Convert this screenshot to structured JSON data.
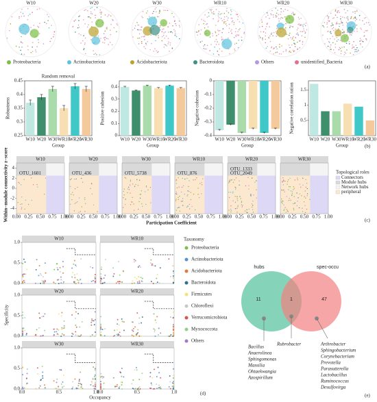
{
  "panel_a": {
    "titles": [
      "W10",
      "W20",
      "W30",
      "WR10",
      "WR20",
      "WR30"
    ],
    "legend": [
      {
        "name": "Proteobacteria",
        "color": "#7cbf45"
      },
      {
        "name": "Actinobacteriota",
        "color": "#5bc3e0"
      },
      {
        "name": "Acidobacteriota",
        "color": "#b9a32c"
      },
      {
        "name": "Bacteroidota",
        "color": "#3e9188"
      },
      {
        "name": "Others",
        "color": "#b597e3"
      },
      {
        "name": "unidentified_Bacteria",
        "color": "#e2728c"
      }
    ],
    "label": "(a)"
  },
  "chart_data": [
    {
      "type": "bar",
      "title": "Random removal",
      "y_label": "Robustness",
      "x_label": "Group",
      "categories": [
        "W10",
        "W20",
        "W30",
        "WR10",
        "WR20",
        "WR30"
      ],
      "values": [
        0.37,
        0.39,
        0.42,
        0.35,
        0.43,
        0.42
      ],
      "errors": [
        0.01,
        0.01,
        0.01,
        0.01,
        0.01,
        0.01
      ],
      "colors": [
        "#bfe8e2",
        "#3f8f6c",
        "#a9dcaa",
        "#f7dfb2",
        "#40c7c7",
        "#f4c99c"
      ],
      "ylim": [
        0.25,
        0.45
      ],
      "yticks": [
        0.25,
        0.3,
        0.35,
        0.4,
        0.45
      ]
    },
    {
      "type": "bar",
      "y_label": "Positive cohesion",
      "x_label": "Group",
      "categories": [
        "W10",
        "W20",
        "W30",
        "WR10",
        "WR20",
        "WR30"
      ],
      "values": [
        0.4,
        0.37,
        0.41,
        0.39,
        0.41,
        0.39
      ],
      "errors": [
        0.005,
        0.005,
        0.005,
        0.005,
        0.005,
        0.005
      ],
      "colors": [
        "#bfe8e2",
        "#3f8f6c",
        "#a9dcaa",
        "#f7dfb2",
        "#40c7c7",
        "#f4c99c"
      ],
      "ylim": [
        0,
        0.45
      ],
      "yticks": [
        0,
        0.1,
        0.2,
        0.3,
        0.4
      ]
    },
    {
      "type": "bar",
      "y_label": "Negative cohesion",
      "x_label": "Group",
      "categories": [
        "W10",
        "W20",
        "W30",
        "WR10",
        "WR20",
        "WR30"
      ],
      "values": [
        -0.36,
        -0.32,
        -0.38,
        -0.35,
        -0.38,
        -0.35
      ],
      "errors": [
        0.005,
        0.005,
        0.005,
        0.005,
        0.005,
        0.005
      ],
      "colors": [
        "#bfe8e2",
        "#3f8f6c",
        "#a9dcaa",
        "#f7dfb2",
        "#40c7c7",
        "#f4c99c"
      ],
      "ylim": [
        -0.4,
        0
      ],
      "yticks": [
        -0.4,
        -0.3,
        -0.2,
        -0.1,
        0
      ]
    },
    {
      "type": "bar",
      "y_label": "Negative correlation ration",
      "x_label": "Group",
      "categories": [
        "W10",
        "W20",
        "W30",
        "WR10",
        "WR20",
        "WR30"
      ],
      "values": [
        1.7,
        0.8,
        0.8,
        1.05,
        0.95,
        0.5
      ],
      "colors": [
        "#bfe8e2",
        "#3f8f6c",
        "#a9dcaa",
        "#f7dfb2",
        "#40c7c7",
        "#f4c99c"
      ],
      "ylim": [
        0,
        1.8
      ],
      "yticks": [
        0.5,
        1,
        1.5
      ]
    }
  ],
  "panel_b_label": "(b)",
  "panel_c": {
    "facets": [
      "W10",
      "W20",
      "W30",
      "WR10",
      "WR20",
      "WR30"
    ],
    "annotations": [
      [
        "OTU_1601"
      ],
      [
        "OTU_436"
      ],
      [
        "OTU_5738"
      ],
      [
        "OTU_876"
      ],
      [
        "OTU_2049",
        "OTU_1333"
      ],
      []
    ],
    "y_label": "Within−module connectivity z−score",
    "x_label": "Participation Coefficient",
    "xlim": [
      0,
      1
    ],
    "ylim": [
      -5,
      5
    ],
    "xticks": [
      {
        "value": 0,
        "label": "0.00"
      },
      {
        "value": 0.25,
        "label": "0.25"
      },
      {
        "value": 0.5,
        "label": "0.50"
      },
      {
        "value": 0.75,
        "label": "0.75"
      },
      {
        "value": 1,
        "label": "1.00"
      }
    ],
    "yticks": [
      -4,
      -2,
      0,
      2,
      4
    ],
    "legend_title": "Topological roles",
    "roles": [
      {
        "name": "Connectors",
        "color": "#ddd8f5"
      },
      {
        "name": "Module hubs",
        "color": "#d9d9d9"
      },
      {
        "name": "Network hubs",
        "color": "#f4f4f4"
      },
      {
        "name": "peripheral",
        "color": "#fbe8cf"
      }
    ],
    "label": "(c)"
  },
  "panel_d": {
    "facets": [
      "W10",
      "WR10",
      "W20",
      "WR20",
      "W30",
      "WR30"
    ],
    "y_label": "Specificity",
    "x_label": "Occupancy",
    "xlim": [
      0,
      1
    ],
    "ylim": [
      0,
      1
    ],
    "xticks": [
      {
        "value": 0,
        "label": "0.0"
      },
      {
        "value": 0.5,
        "label": "0.5"
      },
      {
        "value": 1,
        "label": "1.0"
      }
    ],
    "yticks": [
      {
        "value": 0,
        "label": "0.0"
      },
      {
        "value": 0.5,
        "label": "0.5"
      },
      {
        "value": 1,
        "label": "1.0"
      }
    ],
    "legend_title": "Taxonomy",
    "taxa": [
      {
        "name": "Proteobacteria",
        "color": "#7cbf45"
      },
      {
        "name": "Actinobacteriota",
        "color": "#5a8fd6"
      },
      {
        "name": "Acidobacteriota",
        "color": "#e07b39"
      },
      {
        "name": "Bacteroidota",
        "color": "#2f6f8f"
      },
      {
        "name": "Firmicutes",
        "color": "#f2e27a"
      },
      {
        "name": "Chloroflexi",
        "color": "#c8c8c8"
      },
      {
        "name": "Verrucomicrobiota",
        "color": "#d9534f"
      },
      {
        "name": "Myxococcota",
        "color": "#8fd18f"
      },
      {
        "name": "Others",
        "color": "#9e7bc4"
      }
    ],
    "label": "(d)"
  },
  "panel_e": {
    "sets": [
      {
        "name": "hubs",
        "count": 11,
        "color": "#5cc4a0"
      },
      {
        "name": "spec-occu",
        "count": 47,
        "color": "#f28080"
      }
    ],
    "shared_count": 1,
    "hubs_only": [
      "Bacillus",
      "Anaerolinea",
      "Sphingomonas",
      "Massilia",
      "Ohtaekwangia",
      "Azospirillum"
    ],
    "shared": [
      "Rubrobacter"
    ],
    "spec_only": [
      "Arthrobacter",
      "Sphingobacterium",
      "Corynebacterium",
      "Prevotella",
      "Parasutterella",
      "Lactobacillus",
      "Ruminococcus",
      "Desulfovirga"
    ],
    "label": "(e)"
  }
}
